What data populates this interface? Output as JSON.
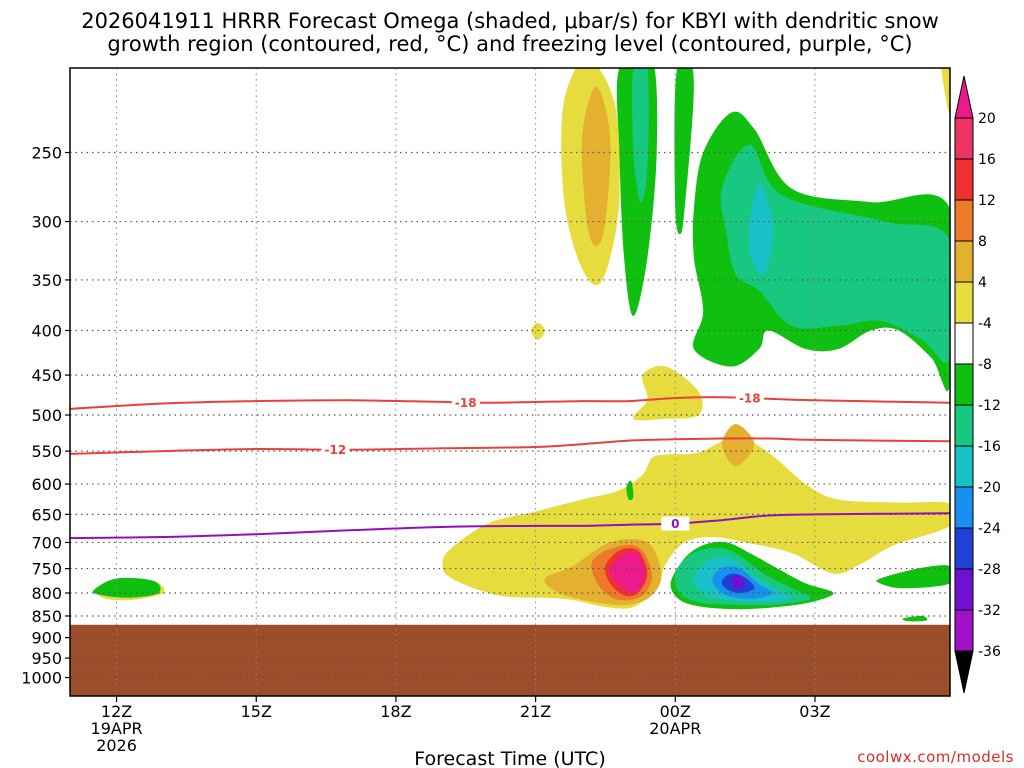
{
  "chart_data": {
    "type": "heatmap",
    "title_lines": [
      "2026041911 HRRR Forecast Omega (shaded, μbar/s) for KBYI with dendritic snow",
      "growth region (contoured, red, °C) and freezing level (contoured, purple, °C)"
    ],
    "xlabel": "Forecast Time (UTC)",
    "credit": "coolwx.com/models",
    "x_ticks": [
      {
        "hour": 12,
        "lines": [
          "12Z",
          "19APR",
          "2026"
        ]
      },
      {
        "hour": 15,
        "lines": [
          "15Z"
        ]
      },
      {
        "hour": 18,
        "lines": [
          "18Z"
        ]
      },
      {
        "hour": 21,
        "lines": [
          "21Z"
        ]
      },
      {
        "hour": 24,
        "lines": [
          "00Z",
          "20APR"
        ]
      },
      {
        "hour": 27,
        "lines": [
          "03Z"
        ]
      }
    ],
    "xlim": [
      11,
      29.9
    ],
    "y_ticks": [
      250,
      300,
      350,
      400,
      450,
      500,
      550,
      600,
      650,
      700,
      750,
      800,
      850,
      900,
      950,
      1000
    ],
    "y_scale": "log",
    "ylim": [
      200,
      1050
    ],
    "grid": true,
    "ground_pressure": 870,
    "colorbar": {
      "levels": [
        20,
        16,
        12,
        8,
        4,
        -4,
        -8,
        -12,
        -16,
        -20,
        -24,
        -28,
        -32,
        -36
      ],
      "colors": [
        "#ee3366",
        "#f03030",
        "#ec7a2a",
        "#e4b030",
        "#e6dc3e",
        "#ffffff",
        "#10c010",
        "#18c880",
        "#18c0c8",
        "#1890f0",
        "#2040d8",
        "#7010d0",
        "#a010c8",
        "#a8a8a8"
      ],
      "over_color": "#ec1a8a",
      "under_color": "#000000"
    },
    "contours": [
      {
        "name": "-18",
        "color": "#e8403a",
        "label": "-18",
        "points": [
          [
            11,
            492
          ],
          [
            13,
            485
          ],
          [
            15,
            482
          ],
          [
            17,
            481
          ],
          [
            19,
            483
          ],
          [
            20,
            484
          ],
          [
            22,
            482
          ],
          [
            23,
            482
          ],
          [
            24,
            478
          ],
          [
            25,
            477
          ],
          [
            26,
            479
          ],
          [
            27,
            481
          ],
          [
            29.9,
            484
          ]
        ]
      },
      {
        "name": "-12",
        "color": "#e8403a",
        "label": "-12",
        "points": [
          [
            11,
            554
          ],
          [
            13,
            550
          ],
          [
            15,
            547
          ],
          [
            17,
            548
          ],
          [
            19,
            546
          ],
          [
            21,
            544
          ],
          [
            22,
            540
          ],
          [
            23,
            535
          ],
          [
            24,
            533
          ],
          [
            25,
            532
          ],
          [
            26,
            532
          ],
          [
            27,
            534
          ],
          [
            29.9,
            536
          ]
        ]
      },
      {
        "name": "0",
        "color": "#9010c0",
        "label": "0",
        "points": [
          [
            11,
            692
          ],
          [
            13,
            690
          ],
          [
            15,
            685
          ],
          [
            17,
            678
          ],
          [
            19,
            672
          ],
          [
            21,
            670
          ],
          [
            22,
            670
          ],
          [
            23,
            668
          ],
          [
            24,
            666
          ],
          [
            25,
            660
          ],
          [
            26,
            652
          ],
          [
            27,
            650
          ],
          [
            29.9,
            648
          ]
        ]
      }
    ],
    "shaded_regions": [
      {
        "value": 4,
        "points": [
          [
            19.2,
            710
          ],
          [
            20,
            665
          ],
          [
            21,
            645
          ],
          [
            22,
            625
          ],
          [
            22.8,
            610
          ],
          [
            23.3,
            585
          ],
          [
            23.5,
            560
          ],
          [
            23.8,
            555
          ],
          [
            24.5,
            552
          ],
          [
            25.3,
            530
          ],
          [
            26,
            552
          ],
          [
            26.8,
            600
          ],
          [
            27.5,
            625
          ],
          [
            28.8,
            630
          ],
          [
            29.9,
            632
          ],
          [
            29.9,
            670
          ],
          [
            28.7,
            705
          ],
          [
            28,
            740
          ],
          [
            27.4,
            760
          ],
          [
            26.5,
            720
          ],
          [
            25.5,
            700
          ],
          [
            24.8,
            690
          ],
          [
            24.2,
            700
          ],
          [
            23.8,
            740
          ],
          [
            23.6,
            790
          ],
          [
            23.1,
            830
          ],
          [
            22.5,
            830
          ],
          [
            21.8,
            815
          ],
          [
            21.2,
            810
          ],
          [
            20.2,
            805
          ],
          [
            19.2,
            770
          ],
          [
            19,
            740
          ]
        ]
      },
      {
        "value": 4,
        "points": [
          [
            23.3,
            450
          ],
          [
            23.8,
            440
          ],
          [
            24.5,
            470
          ],
          [
            24.5,
            500
          ],
          [
            23.8,
            505
          ],
          [
            23.1,
            505
          ],
          [
            23.4,
            480
          ]
        ]
      },
      {
        "value": 4,
        "points": [
          [
            11.6,
            790
          ],
          [
            12,
            770
          ],
          [
            12.8,
            775
          ],
          [
            13,
            800
          ],
          [
            12.3,
            815
          ],
          [
            11.7,
            810
          ]
        ]
      },
      {
        "value": 4,
        "points": [
          [
            21.6,
            220
          ],
          [
            22.1,
            195
          ],
          [
            22.7,
            220
          ],
          [
            22.8,
            280
          ],
          [
            22.6,
            330
          ],
          [
            22.3,
            355
          ],
          [
            21.9,
            330
          ],
          [
            21.6,
            280
          ]
        ]
      },
      {
        "value": 4,
        "points": [
          [
            20.9,
            400
          ],
          [
            21.05,
            392
          ],
          [
            21.2,
            400
          ],
          [
            21.05,
            410
          ]
        ]
      },
      {
        "value": 4,
        "points": [
          [
            29.7,
            195
          ],
          [
            29.9,
            195
          ],
          [
            29.9,
            225
          ],
          [
            29.8,
            215
          ]
        ]
      },
      {
        "value": 8,
        "points": [
          [
            22,
            240
          ],
          [
            22.3,
            210
          ],
          [
            22.6,
            240
          ],
          [
            22.5,
            300
          ],
          [
            22.3,
            320
          ],
          [
            22.1,
            300
          ]
        ]
      },
      {
        "value": 8,
        "points": [
          [
            25,
            540
          ],
          [
            25.3,
            512
          ],
          [
            25.7,
            540
          ],
          [
            25.3,
            572
          ]
        ]
      },
      {
        "value": 8,
        "points": [
          [
            21.2,
            770
          ],
          [
            21.8,
            745
          ],
          [
            22.6,
            700
          ],
          [
            23.4,
            700
          ],
          [
            23.7,
            760
          ],
          [
            23.5,
            805
          ],
          [
            23,
            825
          ],
          [
            22.3,
            820
          ],
          [
            21.5,
            800
          ]
        ]
      },
      {
        "value": 12,
        "points": [
          [
            22.2,
            740
          ],
          [
            22.6,
            712
          ],
          [
            23.2,
            708
          ],
          [
            23.5,
            760
          ],
          [
            23.3,
            805
          ],
          [
            22.8,
            815
          ],
          [
            22.4,
            790
          ]
        ]
      },
      {
        "value": 16,
        "points": [
          [
            22.5,
            745
          ],
          [
            22.8,
            715
          ],
          [
            23.2,
            715
          ],
          [
            23.4,
            760
          ],
          [
            23.2,
            800
          ],
          [
            22.9,
            805
          ],
          [
            22.6,
            780
          ]
        ]
      },
      {
        "value": 20,
        "points": [
          [
            22.6,
            750
          ],
          [
            22.9,
            722
          ],
          [
            23.2,
            722
          ],
          [
            23.35,
            760
          ],
          [
            23.2,
            795
          ],
          [
            22.95,
            795
          ],
          [
            22.7,
            775
          ]
        ]
      },
      {
        "value": -4,
        "points": [
          [
            11.5,
            795
          ],
          [
            12,
            770
          ],
          [
            12.8,
            775
          ],
          [
            12.9,
            800
          ],
          [
            12.3,
            810
          ],
          [
            11.7,
            805
          ]
        ]
      },
      {
        "value": -4,
        "points": [
          [
            22.8,
            200
          ],
          [
            23.5,
            195
          ],
          [
            23.6,
            250
          ],
          [
            23.4,
            330
          ],
          [
            23.1,
            385
          ],
          [
            22.9,
            330
          ],
          [
            22.8,
            250
          ]
        ]
      },
      {
        "value": -4,
        "points": [
          [
            24,
            210
          ],
          [
            24.2,
            190
          ],
          [
            24.4,
            210
          ],
          [
            24.2,
            290
          ],
          [
            24.1,
            310
          ],
          [
            24,
            290
          ]
        ]
      },
      {
        "value": -4,
        "points": [
          [
            24.6,
            250
          ],
          [
            25.2,
            225
          ],
          [
            25.7,
            235
          ],
          [
            26.5,
            275
          ],
          [
            28.2,
            285
          ],
          [
            29.9,
            290
          ],
          [
            29.9,
            460
          ],
          [
            29.5,
            430
          ],
          [
            28.8,
            400
          ],
          [
            28.2,
            400
          ],
          [
            27.5,
            420
          ],
          [
            26.8,
            420
          ],
          [
            26,
            400
          ],
          [
            25.8,
            420
          ],
          [
            25.2,
            440
          ],
          [
            24.4,
            420
          ],
          [
            24.6,
            380
          ],
          [
            24.4,
            330
          ],
          [
            24.4,
            290
          ]
        ]
      },
      {
        "value": -4,
        "points": [
          [
            23.9,
            780
          ],
          [
            24.2,
            730
          ],
          [
            24.6,
            705
          ],
          [
            25.1,
            700
          ],
          [
            25.6,
            720
          ],
          [
            26.2,
            750
          ],
          [
            26.8,
            780
          ],
          [
            27.4,
            800
          ],
          [
            26.9,
            820
          ],
          [
            26.2,
            830
          ],
          [
            25.4,
            835
          ],
          [
            24.6,
            830
          ],
          [
            24.1,
            815
          ]
        ]
      },
      {
        "value": -4,
        "points": [
          [
            28.4,
            770
          ],
          [
            29.2,
            750
          ],
          [
            29.9,
            745
          ],
          [
            29.9,
            780
          ],
          [
            28.9,
            790
          ],
          [
            28.4,
            780
          ]
        ]
      },
      {
        "value": -4,
        "points": [
          [
            28.9,
            855
          ],
          [
            29.3,
            850
          ],
          [
            29.4,
            860
          ],
          [
            29,
            862
          ]
        ]
      },
      {
        "value": -4,
        "points": [
          [
            22.95,
            605
          ],
          [
            23.05,
            595
          ],
          [
            23.1,
            620
          ],
          [
            23,
            625
          ]
        ]
      },
      {
        "value": -8,
        "points": [
          [
            25,
            275
          ],
          [
            25.6,
            245
          ],
          [
            26.3,
            280
          ],
          [
            28.5,
            300
          ],
          [
            29.9,
            315
          ],
          [
            29.9,
            430
          ],
          [
            29.3,
            410
          ],
          [
            28.4,
            390
          ],
          [
            27.5,
            395
          ],
          [
            26.5,
            395
          ],
          [
            25.8,
            360
          ],
          [
            25.3,
            345
          ],
          [
            25.1,
            310
          ]
        ]
      },
      {
        "value": -8,
        "points": [
          [
            23.1,
            200
          ],
          [
            23.4,
            200
          ],
          [
            23.4,
            260
          ],
          [
            23.25,
            285
          ],
          [
            23.1,
            250
          ]
        ]
      },
      {
        "value": -8,
        "points": [
          [
            24,
            760
          ],
          [
            24.3,
            725
          ],
          [
            24.8,
            710
          ],
          [
            25.3,
            720
          ],
          [
            25.9,
            760
          ],
          [
            26.5,
            790
          ],
          [
            26.9,
            812
          ],
          [
            26.1,
            825
          ],
          [
            25.2,
            825
          ],
          [
            24.5,
            820
          ],
          [
            24.1,
            800
          ]
        ]
      },
      {
        "value": -12,
        "points": [
          [
            25.6,
            300
          ],
          [
            25.8,
            272
          ],
          [
            26.1,
            300
          ],
          [
            26,
            335
          ],
          [
            25.8,
            345
          ],
          [
            25.6,
            325
          ]
        ]
      },
      {
        "value": -12,
        "points": [
          [
            24.4,
            770
          ],
          [
            24.7,
            735
          ],
          [
            25.2,
            730
          ],
          [
            25.7,
            765
          ],
          [
            26.2,
            795
          ],
          [
            26.5,
            812
          ],
          [
            25.9,
            820
          ],
          [
            25.1,
            815
          ],
          [
            24.6,
            800
          ]
        ]
      },
      {
        "value": -16,
        "points": [
          [
            24.8,
            770
          ],
          [
            25,
            748
          ],
          [
            25.4,
            750
          ],
          [
            25.8,
            782
          ],
          [
            26.1,
            800
          ],
          [
            25.7,
            812
          ],
          [
            25.2,
            808
          ],
          [
            24.9,
            792
          ]
        ]
      },
      {
        "value": -20,
        "points": [
          [
            25.0,
            775
          ],
          [
            25.2,
            760
          ],
          [
            25.5,
            768
          ],
          [
            25.7,
            790
          ],
          [
            25.4,
            800
          ],
          [
            25.1,
            792
          ]
        ]
      },
      {
        "value": -24,
        "points": [
          [
            25.2,
            770
          ],
          [
            25.35,
            763
          ],
          [
            25.5,
            775
          ],
          [
            25.4,
            790
          ],
          [
            25.25,
            788
          ]
        ]
      }
    ]
  }
}
